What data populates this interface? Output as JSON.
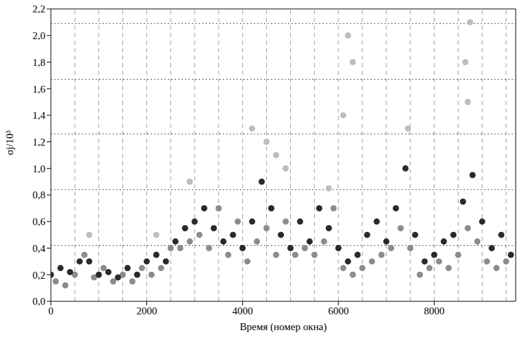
{
  "chart_data": {
    "type": "scatter",
    "x_label": "Время (номер окна)",
    "y_label": "σj/10³",
    "xlim": [
      0,
      9700
    ],
    "xticks": [
      0,
      2000,
      4000,
      6000,
      8000
    ],
    "ylim": [
      0,
      2.2
    ],
    "yticks": [
      {
        "value": 0,
        "label": "0,0"
      },
      {
        "value": 0.2,
        "label": "0,2"
      },
      {
        "value": 0.4,
        "label": "0,4"
      },
      {
        "value": 0.6,
        "label": "0,6"
      },
      {
        "value": 0.8,
        "label": "0,8"
      },
      {
        "value": 1.0,
        "label": "1,0"
      },
      {
        "value": 1.2,
        "label": "1,2"
      },
      {
        "value": 1.4,
        "label": "1,4"
      },
      {
        "value": 1.6,
        "label": "1,6"
      },
      {
        "value": 1.8,
        "label": "1,8"
      },
      {
        "value": 2.0,
        "label": "2,0"
      },
      {
        "value": 2.2,
        "label": "2,2"
      }
    ],
    "grid": false,
    "marker": "circle",
    "hlines": [
      0.42,
      0.84,
      1.26,
      1.67,
      2.09
    ],
    "vlines": [
      500,
      1000,
      1500,
      2000,
      2500,
      3000,
      3500,
      4000,
      4500,
      5000,
      5500,
      6000,
      6500,
      7000,
      7500,
      8000,
      8500,
      9000,
      9500
    ],
    "series": [
      {
        "color": "#bdbdbd",
        "x": [
          800,
          2200,
          2900,
          4200,
          4500,
          4700,
          4900,
          5800,
          6100,
          6200,
          6300,
          7450,
          8650,
          8700,
          8750
        ],
        "y": [
          0.5,
          0.5,
          0.9,
          1.3,
          1.2,
          1.1,
          1.0,
          0.85,
          1.4,
          2.0,
          1.8,
          1.3,
          1.8,
          1.5,
          2.1
        ]
      },
      {
        "color": "#8c8c8c",
        "x": [
          100,
          300,
          500,
          700,
          900,
          1100,
          1300,
          1500,
          1700,
          1900,
          2100,
          2300,
          2500,
          2700,
          2900,
          3100,
          3300,
          3500,
          3700,
          3900,
          4100,
          4300,
          4500,
          4700,
          4900,
          5100,
          5300,
          5500,
          5700,
          5900,
          6100,
          6300,
          6500,
          6700,
          6900,
          7100,
          7300,
          7500,
          7700,
          7900,
          8100,
          8300,
          8500,
          8700,
          8900,
          9100,
          9300,
          9500
        ],
        "y": [
          0.15,
          0.12,
          0.2,
          0.35,
          0.18,
          0.25,
          0.15,
          0.2,
          0.15,
          0.25,
          0.2,
          0.25,
          0.4,
          0.4,
          0.45,
          0.5,
          0.4,
          0.7,
          0.35,
          0.6,
          0.3,
          0.45,
          0.55,
          0.35,
          0.6,
          0.35,
          0.4,
          0.35,
          0.45,
          0.7,
          0.25,
          0.2,
          0.25,
          0.3,
          0.35,
          0.4,
          0.55,
          0.4,
          0.2,
          0.25,
          0.3,
          0.25,
          0.35,
          0.55,
          0.45,
          0.3,
          0.25,
          0.3
        ]
      },
      {
        "color": "#2a2a2a",
        "x": [
          0,
          200,
          400,
          600,
          800,
          1000,
          1200,
          1400,
          1600,
          1800,
          2000,
          2200,
          2400,
          2600,
          2800,
          3000,
          3200,
          3400,
          3600,
          3800,
          4000,
          4200,
          4400,
          4600,
          4800,
          5000,
          5200,
          5400,
          5600,
          5800,
          6000,
          6200,
          6400,
          6600,
          6800,
          7000,
          7200,
          7400,
          7600,
          7800,
          8000,
          8200,
          8400,
          8600,
          8800,
          9000,
          9200,
          9400,
          9600
        ],
        "y": [
          0.2,
          0.25,
          0.22,
          0.3,
          0.3,
          0.2,
          0.22,
          0.18,
          0.25,
          0.2,
          0.3,
          0.35,
          0.3,
          0.45,
          0.55,
          0.6,
          0.7,
          0.55,
          0.45,
          0.5,
          0.4,
          0.6,
          0.9,
          0.7,
          0.5,
          0.4,
          0.6,
          0.45,
          0.7,
          0.55,
          0.4,
          0.3,
          0.35,
          0.5,
          0.6,
          0.45,
          0.7,
          1.0,
          0.5,
          0.3,
          0.35,
          0.45,
          0.5,
          0.75,
          0.95,
          0.6,
          0.4,
          0.5,
          0.35
        ]
      }
    ]
  }
}
